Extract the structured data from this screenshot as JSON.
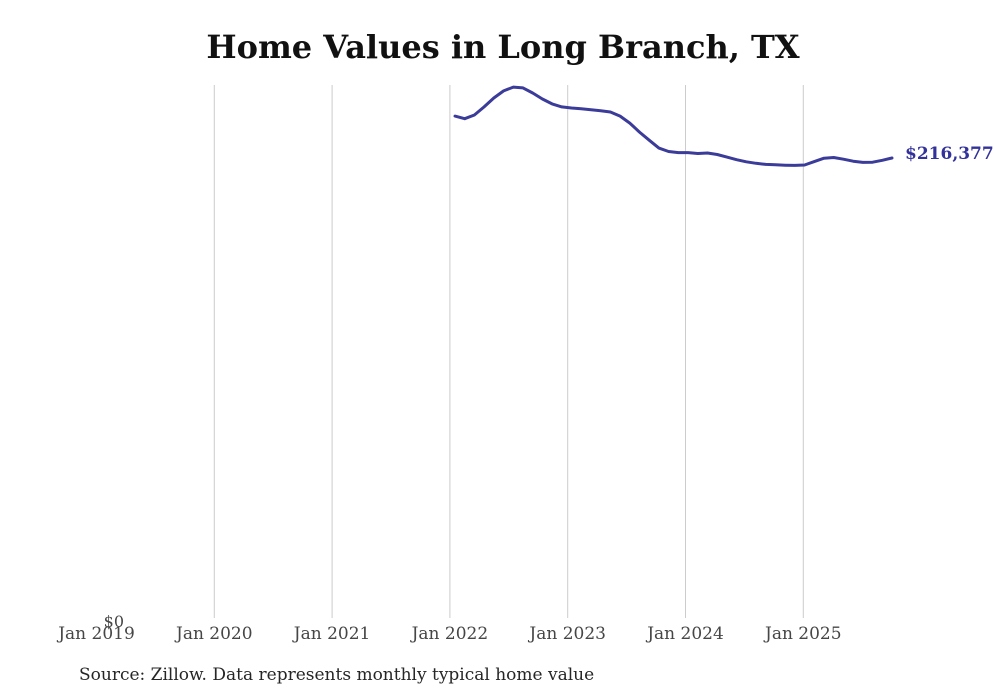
{
  "page": {
    "title": "Home Values in Long Branch, TX",
    "source_note": "Source: Zillow. Data represents monthly typical home value"
  },
  "chart_data": {
    "type": "line",
    "title": "Home Values in Long Branch, TX",
    "series_name": "Monthly typical home value",
    "x": [
      "2022-01",
      "2022-02",
      "2022-03",
      "2022-04",
      "2022-05",
      "2022-06",
      "2022-07",
      "2022-08",
      "2022-09",
      "2022-10",
      "2022-11",
      "2022-12",
      "2023-01",
      "2023-02",
      "2023-03",
      "2023-04",
      "2023-05",
      "2023-06",
      "2023-07",
      "2023-08",
      "2023-09",
      "2023-10",
      "2023-11",
      "2023-12",
      "2024-01",
      "2024-02",
      "2024-03",
      "2024-04",
      "2024-05",
      "2024-06",
      "2024-07",
      "2024-08",
      "2024-09",
      "2024-10",
      "2024-11",
      "2024-12",
      "2025-01",
      "2025-02",
      "2025-03",
      "2025-04",
      "2025-05",
      "2025-06",
      "2025-07",
      "2025-08",
      "2025-09",
      "2025-10"
    ],
    "values": [
      236000,
      234800,
      236500,
      240300,
      244500,
      247800,
      249600,
      249200,
      246800,
      244000,
      241700,
      240300,
      239800,
      239400,
      239000,
      238500,
      237900,
      236000,
      232700,
      228500,
      224700,
      221000,
      219400,
      218900,
      218900,
      218500,
      218700,
      218000,
      216800,
      215600,
      214600,
      213900,
      213400,
      213200,
      213000,
      212900,
      213100,
      214700,
      216300,
      216600,
      215800,
      214900,
      214300,
      214400,
      215300,
      216377
    ],
    "x_ticks": [
      {
        "label": "Jan 2019",
        "gridline": false
      },
      {
        "label": "Jan 2020",
        "gridline": true
      },
      {
        "label": "Jan 2021",
        "gridline": true
      },
      {
        "label": "Jan 2022",
        "gridline": true
      },
      {
        "label": "Jan 2023",
        "gridline": true
      },
      {
        "label": "Jan 2024",
        "gridline": true
      },
      {
        "label": "Jan 2025",
        "gridline": true
      }
    ],
    "y_tick_labels": [
      "$0"
    ],
    "ylim": [
      0,
      260000
    ],
    "latest_value": 216377,
    "latest_value_label": "$216,377",
    "grid": "vertical-only",
    "legend": "none",
    "colors": {
      "line": "#3b3b99",
      "latest_label": "#32329a",
      "grid": "#cccccc",
      "axis_text": "#464646",
      "title_text": "#111111",
      "source_text": "#262626",
      "background": "#ffffff"
    }
  }
}
